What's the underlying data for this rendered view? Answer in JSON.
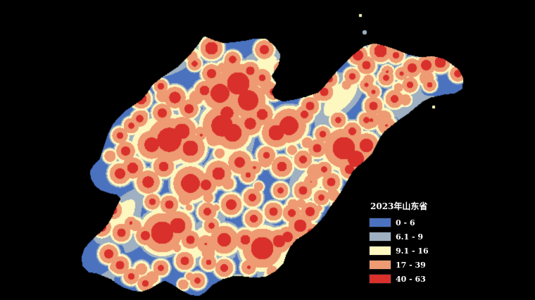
{
  "map": {
    "region": "山东省",
    "background_color": "#000000",
    "class_colors": [
      "#4a72bf",
      "#9eb0c1",
      "#fdf7c0",
      "#ee9a72",
      "#d9302c"
    ]
  },
  "legend": {
    "title": "2023年山东省",
    "items": [
      {
        "label": "0 - 6",
        "color": "#4a72bf"
      },
      {
        "label": "6.1 - 9",
        "color": "#9eb0c1"
      },
      {
        "label": "9.1 - 16",
        "color": "#fdf7c0"
      },
      {
        "label": "17 - 39",
        "color": "#ee9a72"
      },
      {
        "label": "40 - 63",
        "color": "#d9302c"
      }
    ]
  }
}
